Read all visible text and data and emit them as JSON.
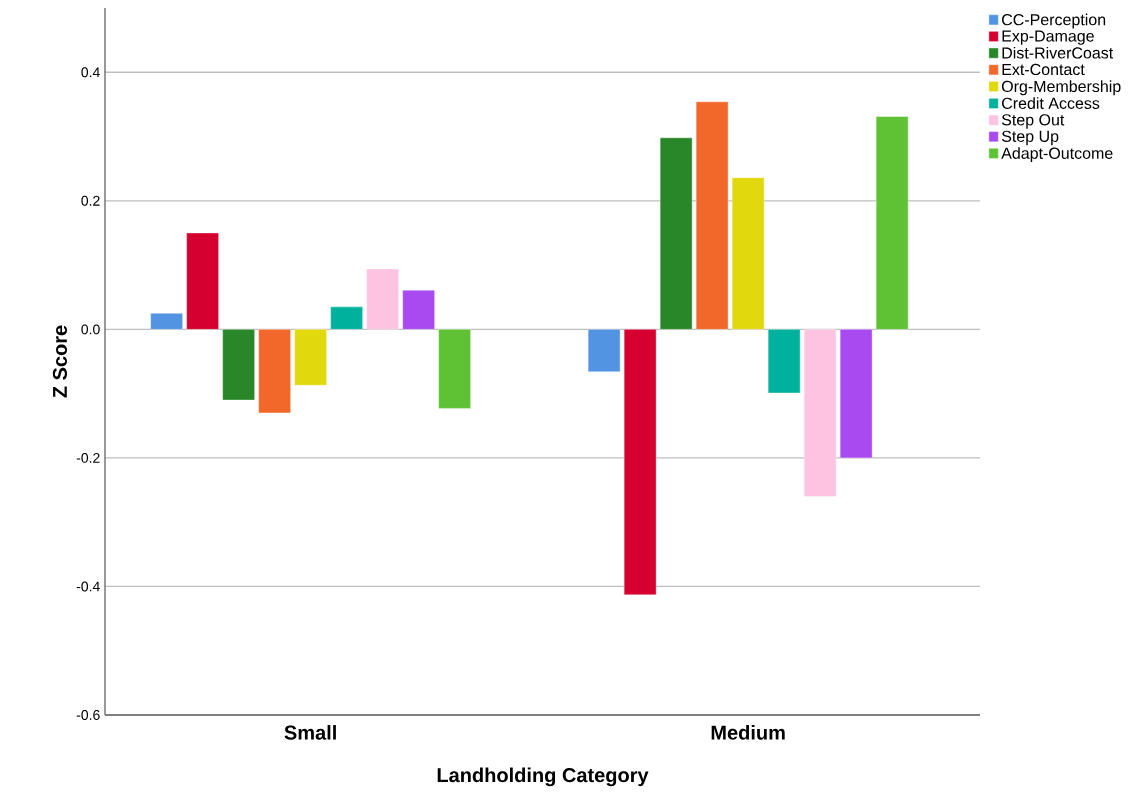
{
  "chart_data": {
    "type": "bar",
    "xlabel": "Landholding Category",
    "ylabel": "Z Score",
    "categories": [
      "Small",
      "Medium"
    ],
    "series": [
      {
        "name": "CC-Perception",
        "color": "#5294e2",
        "values": [
          0.025,
          -0.066
        ]
      },
      {
        "name": "Exp-Damage",
        "color": "#d5002f",
        "values": [
          0.15,
          -0.413
        ]
      },
      {
        "name": "Dist-RiverCoast",
        "color": "#298629",
        "values": [
          -0.11,
          0.298
        ]
      },
      {
        "name": "Ext-Contact",
        "color": "#f2682a",
        "values": [
          -0.13,
          0.354
        ]
      },
      {
        "name": "Org-Membership",
        "color": "#e2d80e",
        "values": [
          -0.087,
          0.236
        ]
      },
      {
        "name": "Credit Access",
        "color": "#00b29e",
        "values": [
          0.035,
          -0.099
        ]
      },
      {
        "name": "Step Out",
        "color": "#fdc3e1",
        "values": [
          0.094,
          -0.26
        ]
      },
      {
        "name": "Step Up",
        "color": "#a84af0",
        "values": [
          0.061,
          -0.2
        ]
      },
      {
        "name": "Adapt-Outcome",
        "color": "#5ec234",
        "values": [
          -0.123,
          0.331
        ]
      }
    ],
    "ylim": [
      -0.6,
      0.5
    ],
    "yticks": [
      {
        "value": -0.6,
        "label": "-0.6"
      },
      {
        "value": -0.4,
        "label": "-0.4"
      },
      {
        "value": -0.2,
        "label": "-0.2"
      },
      {
        "value": 0,
        "label": "0.0"
      },
      {
        "value": 0.2,
        "label": "0.2"
      },
      {
        "value": 0.4,
        "label": "0.4"
      }
    ],
    "grid": "y",
    "legend": "top right"
  }
}
